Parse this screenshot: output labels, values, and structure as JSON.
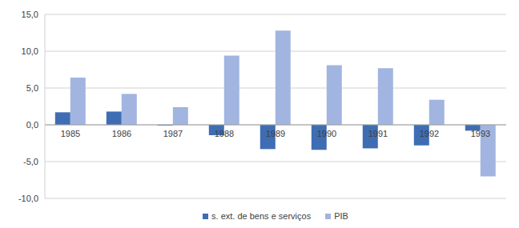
{
  "chart_data": {
    "type": "bar",
    "categories": [
      "1985",
      "1986",
      "1987",
      "1988",
      "1989",
      "1990",
      "1991",
      "1992",
      "1993"
    ],
    "series": [
      {
        "name": "s. ext. de bens e serviços",
        "color": "#3f6db3",
        "values": [
          1.7,
          1.8,
          -0.1,
          -1.4,
          -3.3,
          -3.4,
          -3.2,
          -2.8,
          -0.8
        ]
      },
      {
        "name": "PIB",
        "color": "#a2b5e0",
        "values": [
          6.4,
          4.2,
          2.4,
          9.4,
          12.8,
          8.1,
          7.7,
          3.4,
          -7.0
        ]
      }
    ],
    "ylim": [
      -10,
      15
    ],
    "yticks": [
      {
        "value": -10,
        "label": "-10,0"
      },
      {
        "value": -5,
        "label": "-5,0"
      },
      {
        "value": 0,
        "label": "0,0"
      },
      {
        "value": 5,
        "label": "5,0"
      },
      {
        "value": 10,
        "label": "10,0"
      },
      {
        "value": 15,
        "label": "15,0"
      }
    ],
    "grid": true,
    "legend": "bottom"
  }
}
